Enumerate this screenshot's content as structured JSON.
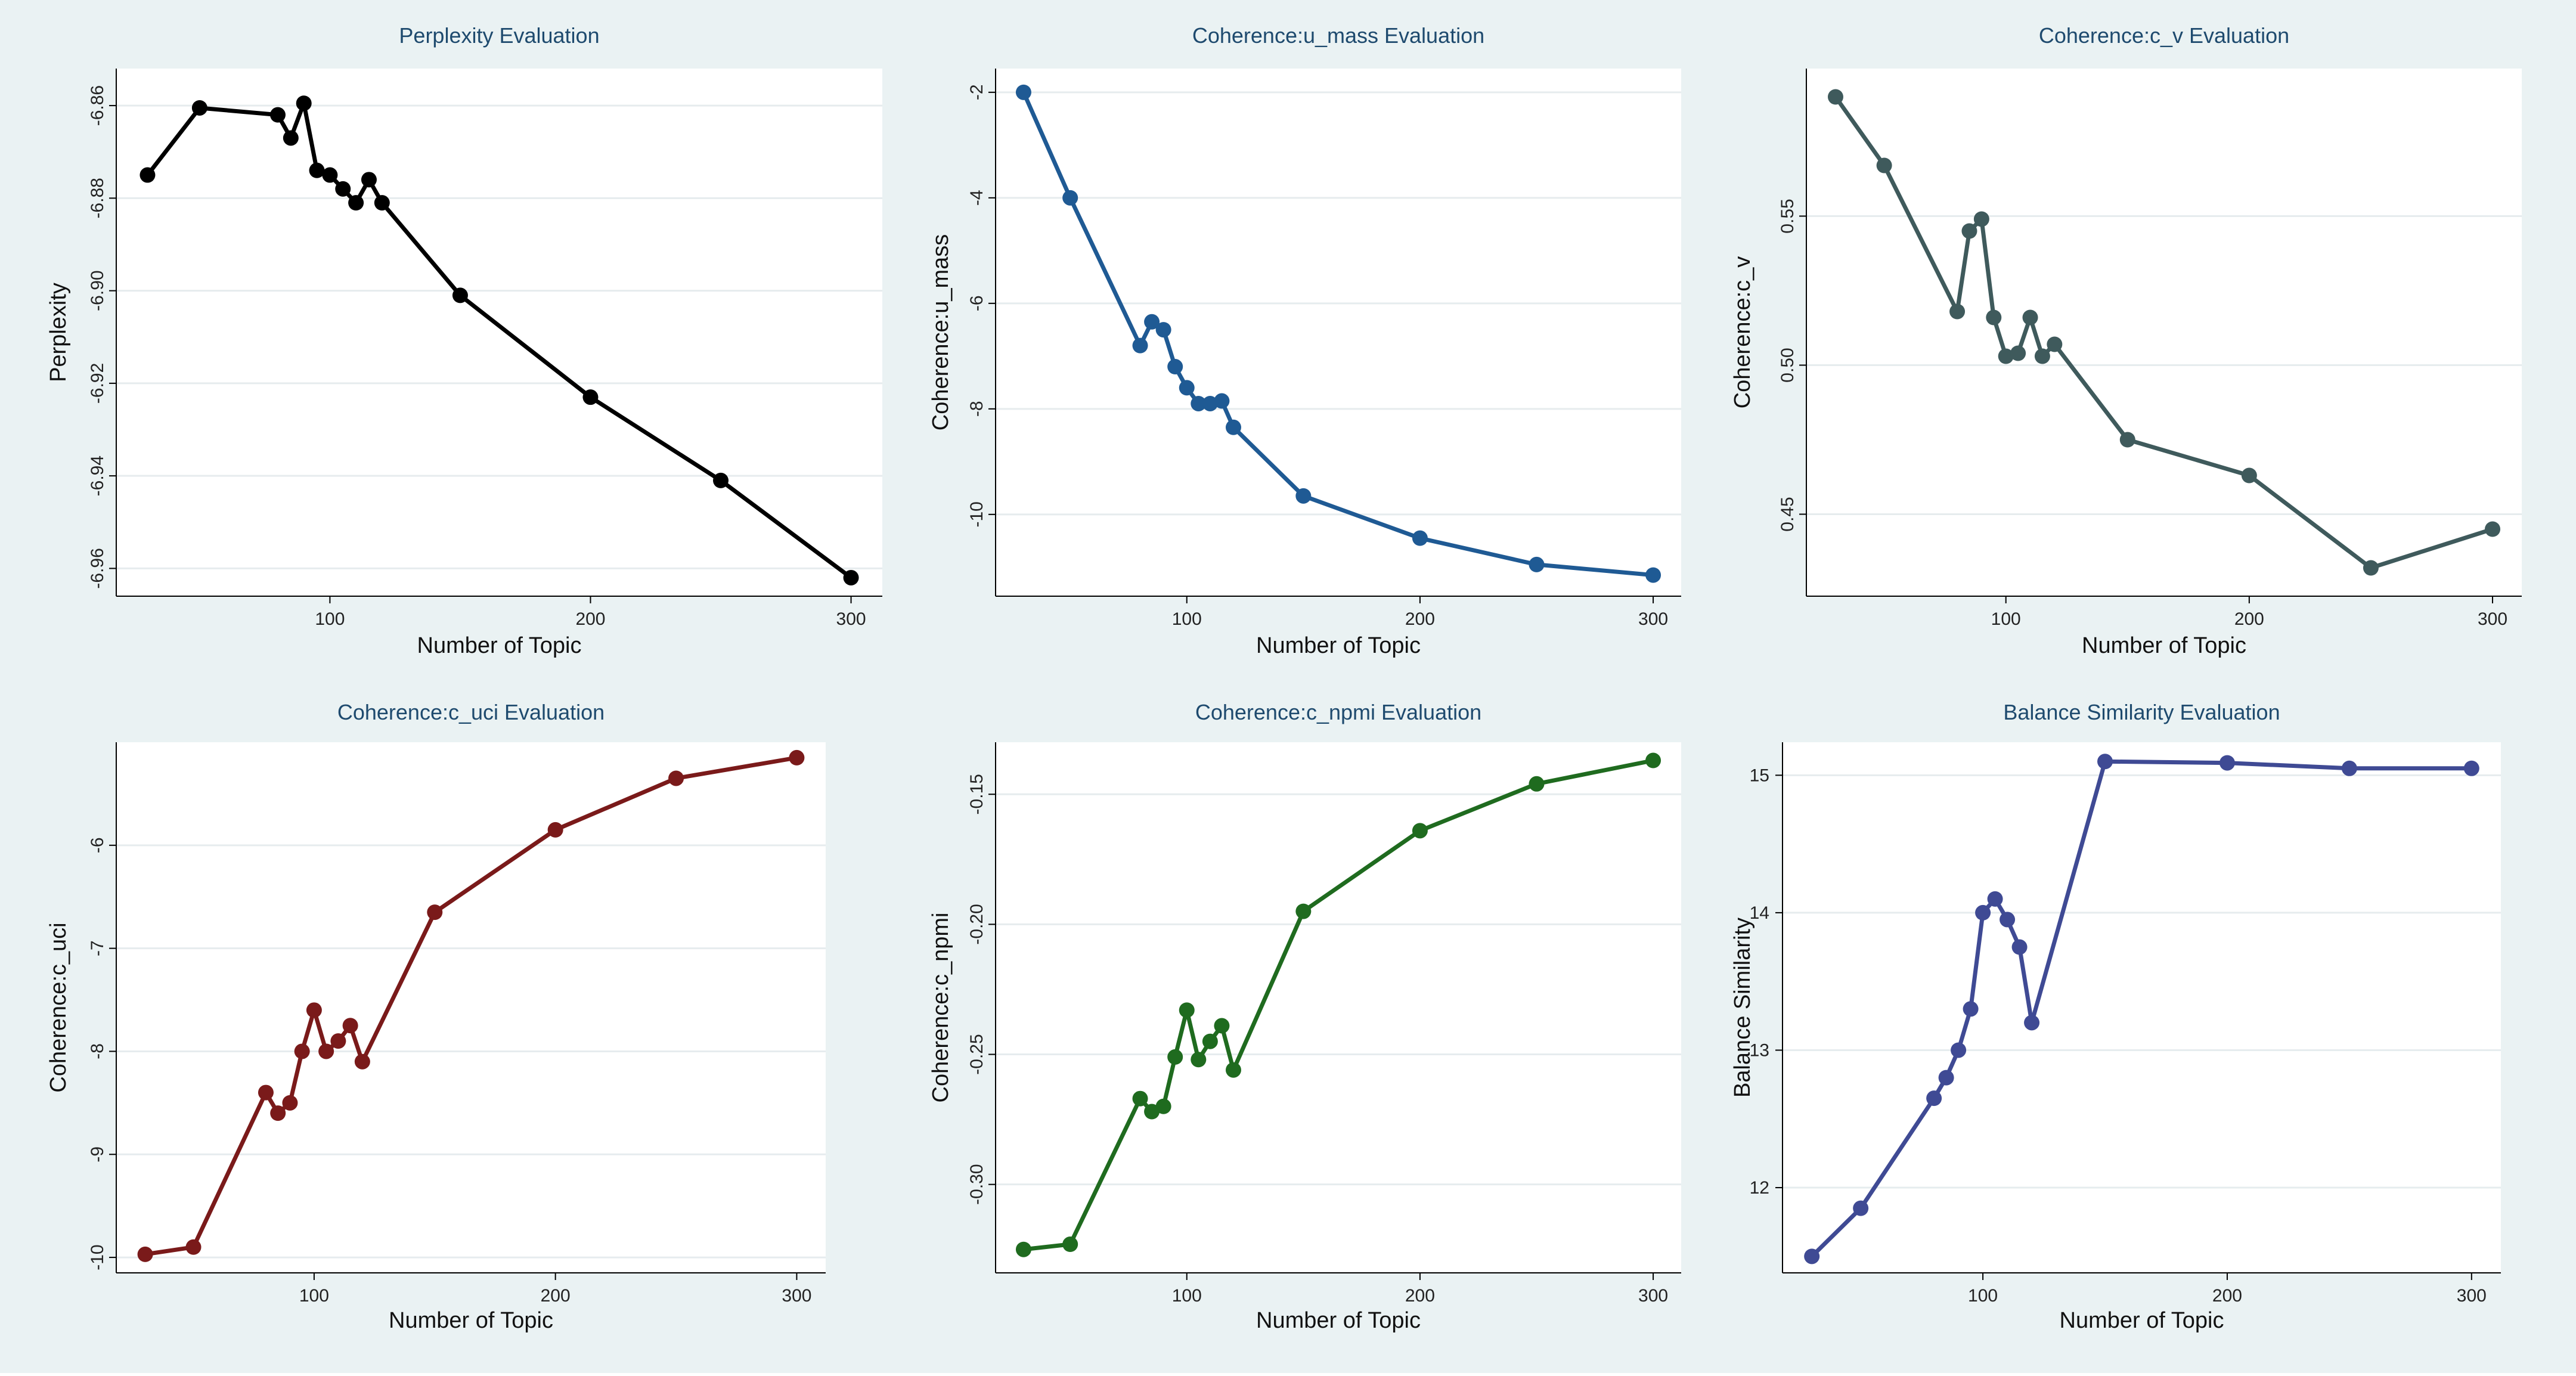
{
  "chart_data": [
    {
      "type": "line",
      "title": "Perplexity Evaluation",
      "xlabel": "Number of Topic",
      "ylabel": "Perplexity",
      "xlim": [
        18,
        312
      ],
      "ylim": [
        -6.966,
        -6.852
      ],
      "xticks": [
        100,
        200,
        300
      ],
      "xtick_labels": [
        "100",
        "200",
        "300"
      ],
      "yticks": [
        -6.86,
        -6.88,
        -6.9,
        -6.92,
        -6.94,
        -6.96
      ],
      "ytick_labels": [
        "-6.86",
        "-6.88",
        "-6.90",
        "-6.92",
        "-6.94",
        "-6.96"
      ],
      "ytick_rotated": true,
      "color": "#000000",
      "x": [
        30,
        50,
        80,
        85,
        90,
        95,
        100,
        105,
        110,
        115,
        120,
        150,
        200,
        250,
        300
      ],
      "y": [
        -6.875,
        -6.8605,
        -6.862,
        -6.867,
        -6.8595,
        -6.874,
        -6.875,
        -6.878,
        -6.881,
        -6.876,
        -6.881,
        -6.901,
        -6.923,
        -6.941,
        -6.962
      ]
    },
    {
      "type": "line",
      "title": "Coherence:u_mass Evaluation",
      "xlabel": "Number of Topic",
      "ylabel": "Coherence:u_mass",
      "xlim": [
        18,
        312
      ],
      "ylim": [
        -11.55,
        -1.55
      ],
      "xticks": [
        100,
        200,
        300
      ],
      "xtick_labels": [
        "100",
        "200",
        "300"
      ],
      "yticks": [
        -2,
        -4,
        -6,
        -8,
        -10
      ],
      "ytick_labels": [
        "-2",
        "-4",
        "-6",
        "-8",
        "-10"
      ],
      "ytick_rotated": true,
      "color": "#1f5a94",
      "x": [
        30,
        50,
        80,
        85,
        90,
        95,
        100,
        105,
        110,
        115,
        120,
        150,
        200,
        250,
        300
      ],
      "y": [
        -2.0,
        -4.0,
        -6.8,
        -6.35,
        -6.5,
        -7.2,
        -7.6,
        -7.9,
        -7.9,
        -7.85,
        -8.35,
        -9.65,
        -10.45,
        -10.95,
        -11.15
      ]
    },
    {
      "type": "line",
      "title": "Coherence:c_v Evaluation",
      "xlabel": "Number of Topic",
      "ylabel": "Coherence:c_v",
      "xlim": [
        18,
        312
      ],
      "ylim": [
        0.4225,
        0.5995
      ],
      "xticks": [
        100,
        200,
        300
      ],
      "xtick_labels": [
        "100",
        "200",
        "300"
      ],
      "yticks": [
        0.55,
        0.5,
        0.45
      ],
      "ytick_labels": [
        "0.55",
        "0.50",
        "0.45"
      ],
      "ytick_rotated": true,
      "color": "#3f5a5c",
      "x": [
        30,
        50,
        80,
        85,
        90,
        95,
        100,
        105,
        110,
        115,
        120,
        150,
        200,
        250,
        300
      ],
      "y": [
        0.59,
        0.567,
        0.518,
        0.545,
        0.549,
        0.516,
        0.503,
        0.504,
        0.516,
        0.503,
        0.507,
        0.475,
        0.463,
        0.432,
        0.445
      ]
    },
    {
      "type": "line",
      "title": "Coherence:c_uci Evaluation",
      "xlabel": "Number of Topic",
      "ylabel": "Coherence:c_uci",
      "xlim": [
        18,
        312
      ],
      "ylim": [
        -10.15,
        -5.0
      ],
      "xticks": [
        100,
        200,
        300
      ],
      "xtick_labels": [
        "100",
        "200",
        "300"
      ],
      "yticks": [
        -6,
        -7,
        -8,
        -9,
        -10
      ],
      "ytick_labels": [
        "-6",
        "-7",
        "-8",
        "-9",
        "-10"
      ],
      "ytick_rotated": true,
      "color": "#7a1a1a",
      "x": [
        30,
        50,
        80,
        85,
        90,
        95,
        100,
        105,
        110,
        115,
        120,
        150,
        200,
        250,
        300
      ],
      "y": [
        -9.97,
        -9.9,
        -8.4,
        -8.6,
        -8.5,
        -8.0,
        -7.6,
        -8.0,
        -7.9,
        -7.75,
        -8.1,
        -6.65,
        -5.85,
        -5.35,
        -5.15
      ]
    },
    {
      "type": "line",
      "title": "Coherence:c_npmi Evaluation",
      "xlabel": "Number of Topic",
      "ylabel": "Coherence:c_npmi",
      "xlim": [
        18,
        312
      ],
      "ylim": [
        -0.334,
        -0.13
      ],
      "xticks": [
        100,
        200,
        300
      ],
      "xtick_labels": [
        "100",
        "200",
        "300"
      ],
      "yticks": [
        -0.15,
        -0.2,
        -0.25,
        -0.3
      ],
      "ytick_labels": [
        "-0.15",
        "-0.20",
        "-0.25",
        "-0.30"
      ],
      "ytick_rotated": true,
      "color": "#1f6b1f",
      "x": [
        30,
        50,
        80,
        85,
        90,
        95,
        100,
        105,
        110,
        115,
        120,
        150,
        200,
        250,
        300
      ],
      "y": [
        -0.325,
        -0.323,
        -0.267,
        -0.272,
        -0.27,
        -0.251,
        -0.233,
        -0.252,
        -0.245,
        -0.239,
        -0.256,
        -0.195,
        -0.164,
        -0.146,
        -0.137
      ]
    },
    {
      "type": "line",
      "title": "Balance Similarity Evaluation",
      "xlabel": "Number of Topic",
      "ylabel": "Balance Similarity",
      "xlim": [
        18,
        312
      ],
      "ylim": [
        11.38,
        15.24
      ],
      "xticks": [
        100,
        200,
        300
      ],
      "xtick_labels": [
        "100",
        "200",
        "300"
      ],
      "yticks": [
        15,
        14,
        13,
        12
      ],
      "ytick_labels": [
        "15",
        "14",
        "13",
        "12"
      ],
      "ytick_rotated": false,
      "color": "#3f4a94",
      "x": [
        30,
        50,
        80,
        85,
        90,
        95,
        100,
        105,
        110,
        115,
        120,
        150,
        200,
        250,
        300
      ],
      "y": [
        11.5,
        11.85,
        12.65,
        12.8,
        13.0,
        13.3,
        14.0,
        14.1,
        13.95,
        13.75,
        13.2,
        15.1,
        15.09,
        15.05,
        15.05
      ]
    }
  ]
}
